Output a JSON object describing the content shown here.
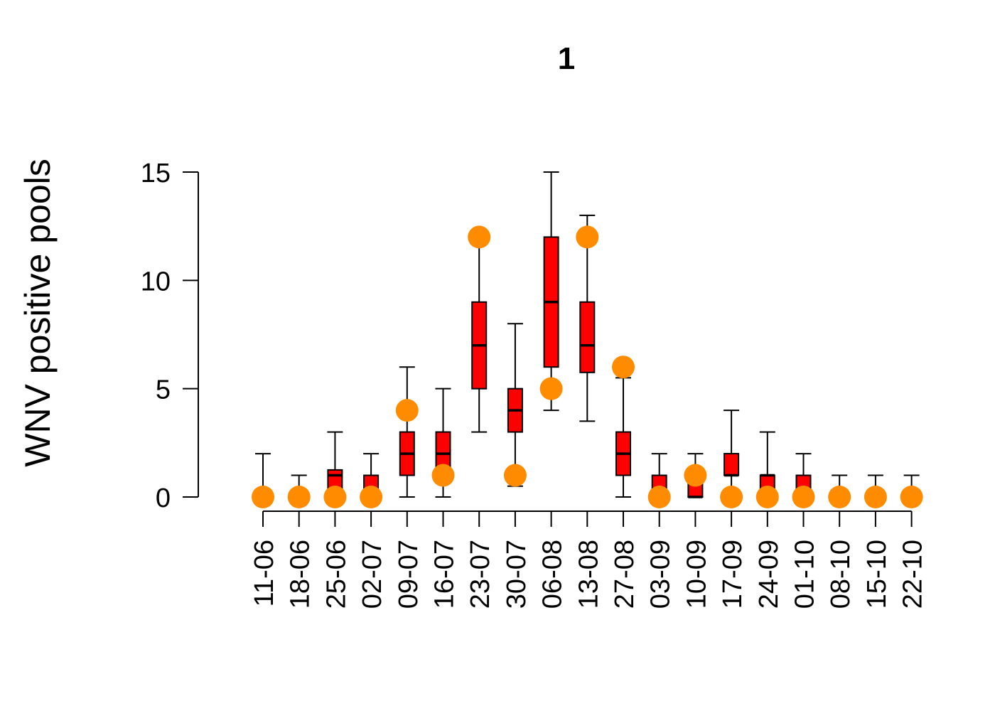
{
  "chart_data": {
    "type": "box",
    "title": "1",
    "ylabel": "WNV positive pools",
    "xlabel": "",
    "ylim": [
      0,
      15
    ],
    "yticks": [
      0,
      5,
      10,
      15
    ],
    "categories": [
      "11-06",
      "18-06",
      "25-06",
      "02-07",
      "09-07",
      "16-07",
      "23-07",
      "30-07",
      "06-08",
      "13-08",
      "27-08",
      "03-09",
      "10-09",
      "17-09",
      "24-09",
      "01-10",
      "08-10",
      "15-10",
      "22-10"
    ],
    "boxes": [
      {
        "min": 0,
        "q1": 0,
        "median": 0,
        "q3": 0,
        "max": 2
      },
      {
        "min": 0,
        "q1": 0,
        "median": 0,
        "q3": 0,
        "max": 1
      },
      {
        "min": 0,
        "q1": 0,
        "median": 1,
        "q3": 1.25,
        "max": 3
      },
      {
        "min": 0,
        "q1": 0,
        "median": 0,
        "q3": 1,
        "max": 2
      },
      {
        "min": 0,
        "q1": 1,
        "median": 2,
        "q3": 3,
        "max": 6
      },
      {
        "min": 0,
        "q1": 1,
        "median": 2,
        "q3": 3,
        "max": 5
      },
      {
        "min": 3,
        "q1": 5,
        "median": 7,
        "q3": 9,
        "max": 12
      },
      {
        "min": 0.5,
        "q1": 3,
        "median": 4,
        "q3": 5,
        "max": 8
      },
      {
        "min": 4,
        "q1": 6,
        "median": 9,
        "q3": 12,
        "max": 15
      },
      {
        "min": 3.5,
        "q1": 5.75,
        "median": 7,
        "q3": 9,
        "max": 13
      },
      {
        "min": 0,
        "q1": 1,
        "median": 2,
        "q3": 3,
        "max": 5.5
      },
      {
        "min": 0,
        "q1": 0,
        "median": 0,
        "q3": 1,
        "max": 2
      },
      {
        "min": 0,
        "q1": 0,
        "median": 0,
        "q3": 1,
        "max": 2
      },
      {
        "min": 0,
        "q1": 1,
        "median": 1,
        "q3": 2,
        "max": 4
      },
      {
        "min": 0,
        "q1": 0,
        "median": 1,
        "q3": 1,
        "max": 3
      },
      {
        "min": 0,
        "q1": 0,
        "median": 0,
        "q3": 1,
        "max": 2
      },
      {
        "min": 0,
        "q1": 0,
        "median": 0,
        "q3": 0,
        "max": 1
      },
      {
        "min": 0,
        "q1": 0,
        "median": 0,
        "q3": 0,
        "max": 1
      },
      {
        "min": 0,
        "q1": 0,
        "median": 0,
        "q3": 0,
        "max": 1
      }
    ],
    "observed": [
      0,
      0,
      0,
      0,
      4,
      1,
      12,
      1,
      5,
      12,
      6,
      0,
      1,
      0,
      0,
      0,
      0,
      0,
      0
    ],
    "box_color": "#ff0000",
    "point_color": "#ff8c00",
    "grid": false,
    "legend": "none"
  }
}
